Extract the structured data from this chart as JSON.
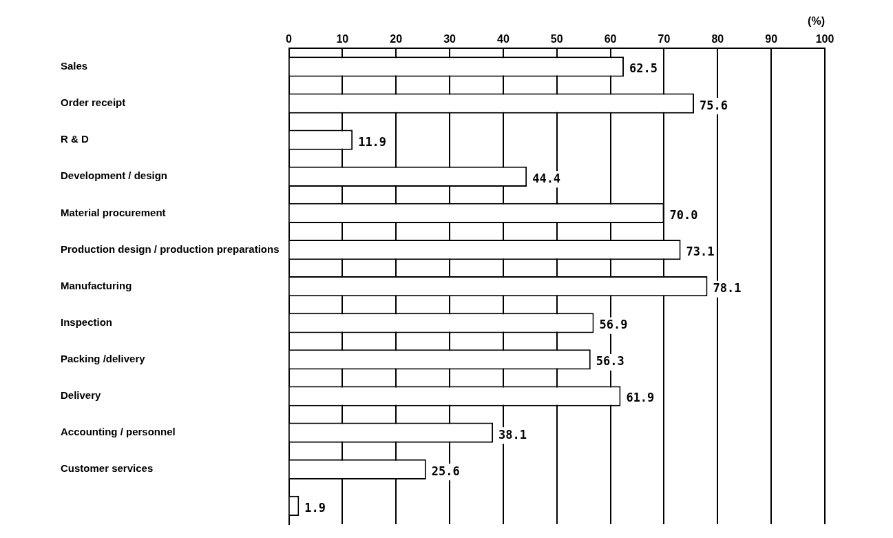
{
  "chart_data": {
    "type": "bar",
    "orientation": "horizontal",
    "xlabel": "(%)",
    "categories": [
      "Sales",
      "Order receipt",
      "R & D",
      "Development / design",
      "Material procurement",
      "Production design / production preparations",
      "Manufacturing",
      "Inspection",
      "Packing /delivery",
      "Delivery",
      "Accounting / personnel",
      "Customer services",
      null
    ],
    "values": [
      62.5,
      75.6,
      11.9,
      44.4,
      70.0,
      73.1,
      78.1,
      56.9,
      56.3,
      61.9,
      38.1,
      25.6,
      1.9
    ],
    "color": "#ffffff",
    "xlim": [
      0,
      100
    ],
    "xticks": [
      0,
      10,
      20,
      30,
      40,
      50,
      60,
      70,
      80,
      90,
      100
    ],
    "grid": "x",
    "value_labels": [
      "62.5",
      "75.6",
      "11.9",
      "44.4",
      "70.0",
      "73.1",
      "78.1",
      "56.9",
      "56.3",
      "61.9",
      "38.1",
      "25.6",
      "1.9"
    ],
    "legend": false
  }
}
